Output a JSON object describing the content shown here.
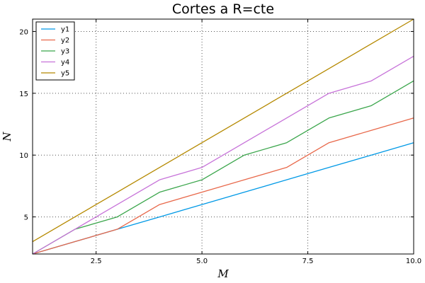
{
  "chart_data": {
    "type": "line",
    "title": "Cortes a R=cte",
    "xlabel": "M",
    "ylabel": "N",
    "xlim": [
      1,
      10
    ],
    "ylim": [
      2,
      21
    ],
    "xticks": [
      2.5,
      5.0,
      7.5,
      10.0
    ],
    "xtick_labels": [
      "2.5",
      "5.0",
      "7.5",
      "10.0"
    ],
    "yticks": [
      5,
      10,
      15,
      20
    ],
    "ytick_labels": [
      "5",
      "10",
      "15",
      "20"
    ],
    "grid": true,
    "legend_position": "top-left",
    "x": [
      1,
      2,
      3,
      4,
      5,
      6,
      7,
      8,
      9,
      10
    ],
    "series": [
      {
        "name": "y1",
        "color": "#0099e6",
        "values": [
          2,
          3,
          4,
          5,
          6,
          7,
          8,
          9,
          10,
          11
        ]
      },
      {
        "name": "y2",
        "color": "#e8684a",
        "values": [
          2,
          3,
          4,
          6,
          7,
          8,
          9,
          11,
          12,
          13
        ]
      },
      {
        "name": "y3",
        "color": "#3ba64c",
        "values": [
          2,
          4,
          5,
          7,
          8,
          10,
          11,
          13,
          14,
          16
        ]
      },
      {
        "name": "y4",
        "color": "#c773d9",
        "values": [
          2,
          4,
          6,
          8,
          9,
          11,
          13,
          15,
          16,
          18
        ]
      },
      {
        "name": "y5",
        "color": "#b58900",
        "values": [
          3,
          5,
          7,
          9,
          11,
          13,
          15,
          17,
          19,
          21
        ]
      }
    ]
  }
}
